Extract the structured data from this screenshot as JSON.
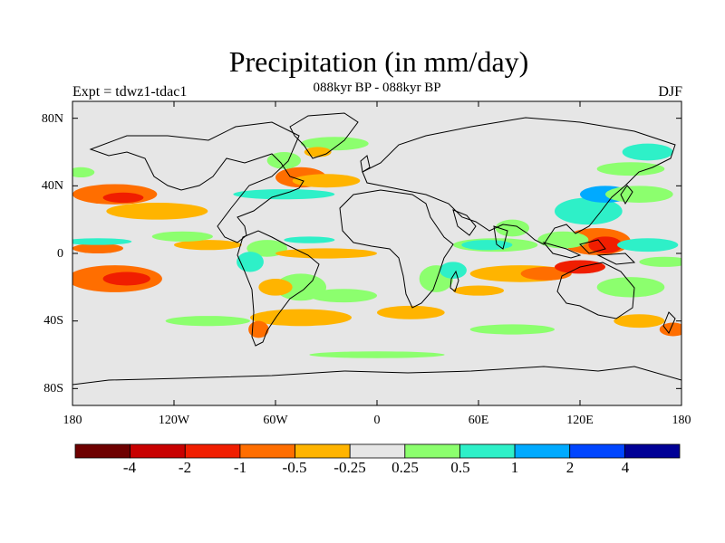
{
  "title": "Precipitation (in mm/day)",
  "subtitle": "088kyr BP - 088kyr BP",
  "experiment": "Expt = tdwz1-tdac1",
  "season": "DJF",
  "colors": {
    "land_bg": "#e6e6e6",
    "coast": "#000000",
    "scale": [
      "#6e0000",
      "#c80000",
      "#f01e00",
      "#ff6e00",
      "#ffb400",
      "#e6e6e6",
      "#8cff6e",
      "#2ef0c8",
      "#00aaff",
      "#0046ff",
      "#000096"
    ]
  },
  "chart_data": {
    "type": "heatmap",
    "projection": "cylindrical-equidistant",
    "x_range": [
      -180,
      180
    ],
    "y_range": [
      -90,
      90
    ],
    "lat_ticks": [
      "80N",
      "40N",
      "0",
      "40S",
      "80S"
    ],
    "lon_ticks": [
      "180",
      "120W",
      "60W",
      "0",
      "60E",
      "120E",
      "180"
    ],
    "colorbar": {
      "labels": [
        "-4",
        "-2",
        "-1",
        "-0.5",
        "-0.25",
        "0.25",
        "0.5",
        "1",
        "2",
        "4"
      ]
    },
    "anomaly_blobs": [
      {
        "lon": -155,
        "lat": 35,
        "rx": 25,
        "ry": 6,
        "level": -2
      },
      {
        "lon": -150,
        "lat": 33,
        "rx": 12,
        "ry": 3,
        "level": -3
      },
      {
        "lon": -155,
        "lat": -15,
        "rx": 28,
        "ry": 8,
        "level": -2
      },
      {
        "lon": -148,
        "lat": -15,
        "rx": 14,
        "ry": 4,
        "level": -3
      },
      {
        "lon": -165,
        "lat": 3,
        "rx": 15,
        "ry": 3,
        "level": -2
      },
      {
        "lon": -165,
        "lat": 7,
        "rx": 20,
        "ry": 2,
        "level": 2
      },
      {
        "lon": -130,
        "lat": 25,
        "rx": 30,
        "ry": 5,
        "level": -1
      },
      {
        "lon": -175,
        "lat": 48,
        "rx": 8,
        "ry": 3,
        "level": 1
      },
      {
        "lon": -100,
        "lat": 5,
        "rx": 20,
        "ry": 3,
        "level": -1
      },
      {
        "lon": -115,
        "lat": 10,
        "rx": 18,
        "ry": 3,
        "level": 1
      },
      {
        "lon": -45,
        "lat": 45,
        "rx": 15,
        "ry": 6,
        "level": -2
      },
      {
        "lon": -30,
        "lat": 43,
        "rx": 20,
        "ry": 4,
        "level": -1
      },
      {
        "lon": -55,
        "lat": 55,
        "rx": 10,
        "ry": 5,
        "level": 1
      },
      {
        "lon": -55,
        "lat": 35,
        "rx": 30,
        "ry": 3,
        "level": 2
      },
      {
        "lon": -25,
        "lat": 65,
        "rx": 20,
        "ry": 4,
        "level": 1
      },
      {
        "lon": -35,
        "lat": 60,
        "rx": 8,
        "ry": 3,
        "level": -1
      },
      {
        "lon": -65,
        "lat": 3,
        "rx": 12,
        "ry": 5,
        "level": 1
      },
      {
        "lon": -75,
        "lat": -5,
        "rx": 8,
        "ry": 6,
        "level": 2
      },
      {
        "lon": -45,
        "lat": -20,
        "rx": 15,
        "ry": 8,
        "level": 1
      },
      {
        "lon": -60,
        "lat": -20,
        "rx": 10,
        "ry": 5,
        "level": -1
      },
      {
        "lon": -30,
        "lat": 0,
        "rx": 30,
        "ry": 3,
        "level": -1
      },
      {
        "lon": -40,
        "lat": 8,
        "rx": 15,
        "ry": 2,
        "level": 2
      },
      {
        "lon": -45,
        "lat": -38,
        "rx": 30,
        "ry": 5,
        "level": -1
      },
      {
        "lon": -70,
        "lat": -45,
        "rx": 6,
        "ry": 5,
        "level": -2
      },
      {
        "lon": -20,
        "lat": -25,
        "rx": 20,
        "ry": 4,
        "level": 1
      },
      {
        "lon": 20,
        "lat": -35,
        "rx": 20,
        "ry": 4,
        "level": -1
      },
      {
        "lon": 35,
        "lat": -15,
        "rx": 10,
        "ry": 8,
        "level": 1
      },
      {
        "lon": 45,
        "lat": -10,
        "rx": 8,
        "ry": 5,
        "level": 2
      },
      {
        "lon": 60,
        "lat": -22,
        "rx": 15,
        "ry": 3,
        "level": -1
      },
      {
        "lon": 70,
        "lat": 5,
        "rx": 25,
        "ry": 4,
        "level": 1
      },
      {
        "lon": 65,
        "lat": 5,
        "rx": 15,
        "ry": 3,
        "level": 2
      },
      {
        "lon": 80,
        "lat": 15,
        "rx": 10,
        "ry": 5,
        "level": 1
      },
      {
        "lon": 85,
        "lat": -12,
        "rx": 30,
        "ry": 5,
        "level": -1
      },
      {
        "lon": 100,
        "lat": -12,
        "rx": 15,
        "ry": 4,
        "level": -2
      },
      {
        "lon": 120,
        "lat": -8,
        "rx": 15,
        "ry": 4,
        "level": -3
      },
      {
        "lon": 130,
        "lat": 7,
        "rx": 20,
        "ry": 8,
        "level": -2
      },
      {
        "lon": 135,
        "lat": 5,
        "rx": 10,
        "ry": 5,
        "level": -3
      },
      {
        "lon": 125,
        "lat": 25,
        "rx": 20,
        "ry": 8,
        "level": 2
      },
      {
        "lon": 135,
        "lat": 35,
        "rx": 15,
        "ry": 5,
        "level": 3
      },
      {
        "lon": 110,
        "lat": 8,
        "rx": 15,
        "ry": 5,
        "level": 1
      },
      {
        "lon": 155,
        "lat": 35,
        "rx": 20,
        "ry": 5,
        "level": 1
      },
      {
        "lon": 160,
        "lat": 5,
        "rx": 18,
        "ry": 4,
        "level": 2
      },
      {
        "lon": 170,
        "lat": -5,
        "rx": 15,
        "ry": 3,
        "level": 1
      },
      {
        "lon": 150,
        "lat": -20,
        "rx": 20,
        "ry": 6,
        "level": 1
      },
      {
        "lon": 155,
        "lat": -40,
        "rx": 15,
        "ry": 4,
        "level": -1
      },
      {
        "lon": 175,
        "lat": -45,
        "rx": 8,
        "ry": 4,
        "level": -2
      },
      {
        "lon": 150,
        "lat": 50,
        "rx": 20,
        "ry": 4,
        "level": 1
      },
      {
        "lon": 160,
        "lat": 60,
        "rx": 15,
        "ry": 5,
        "level": 2
      },
      {
        "lon": -100,
        "lat": -40,
        "rx": 25,
        "ry": 3,
        "level": 1
      },
      {
        "lon": 0,
        "lat": -60,
        "rx": 40,
        "ry": 2,
        "level": 1
      },
      {
        "lon": 80,
        "lat": -45,
        "rx": 25,
        "ry": 3,
        "level": 1
      }
    ]
  }
}
